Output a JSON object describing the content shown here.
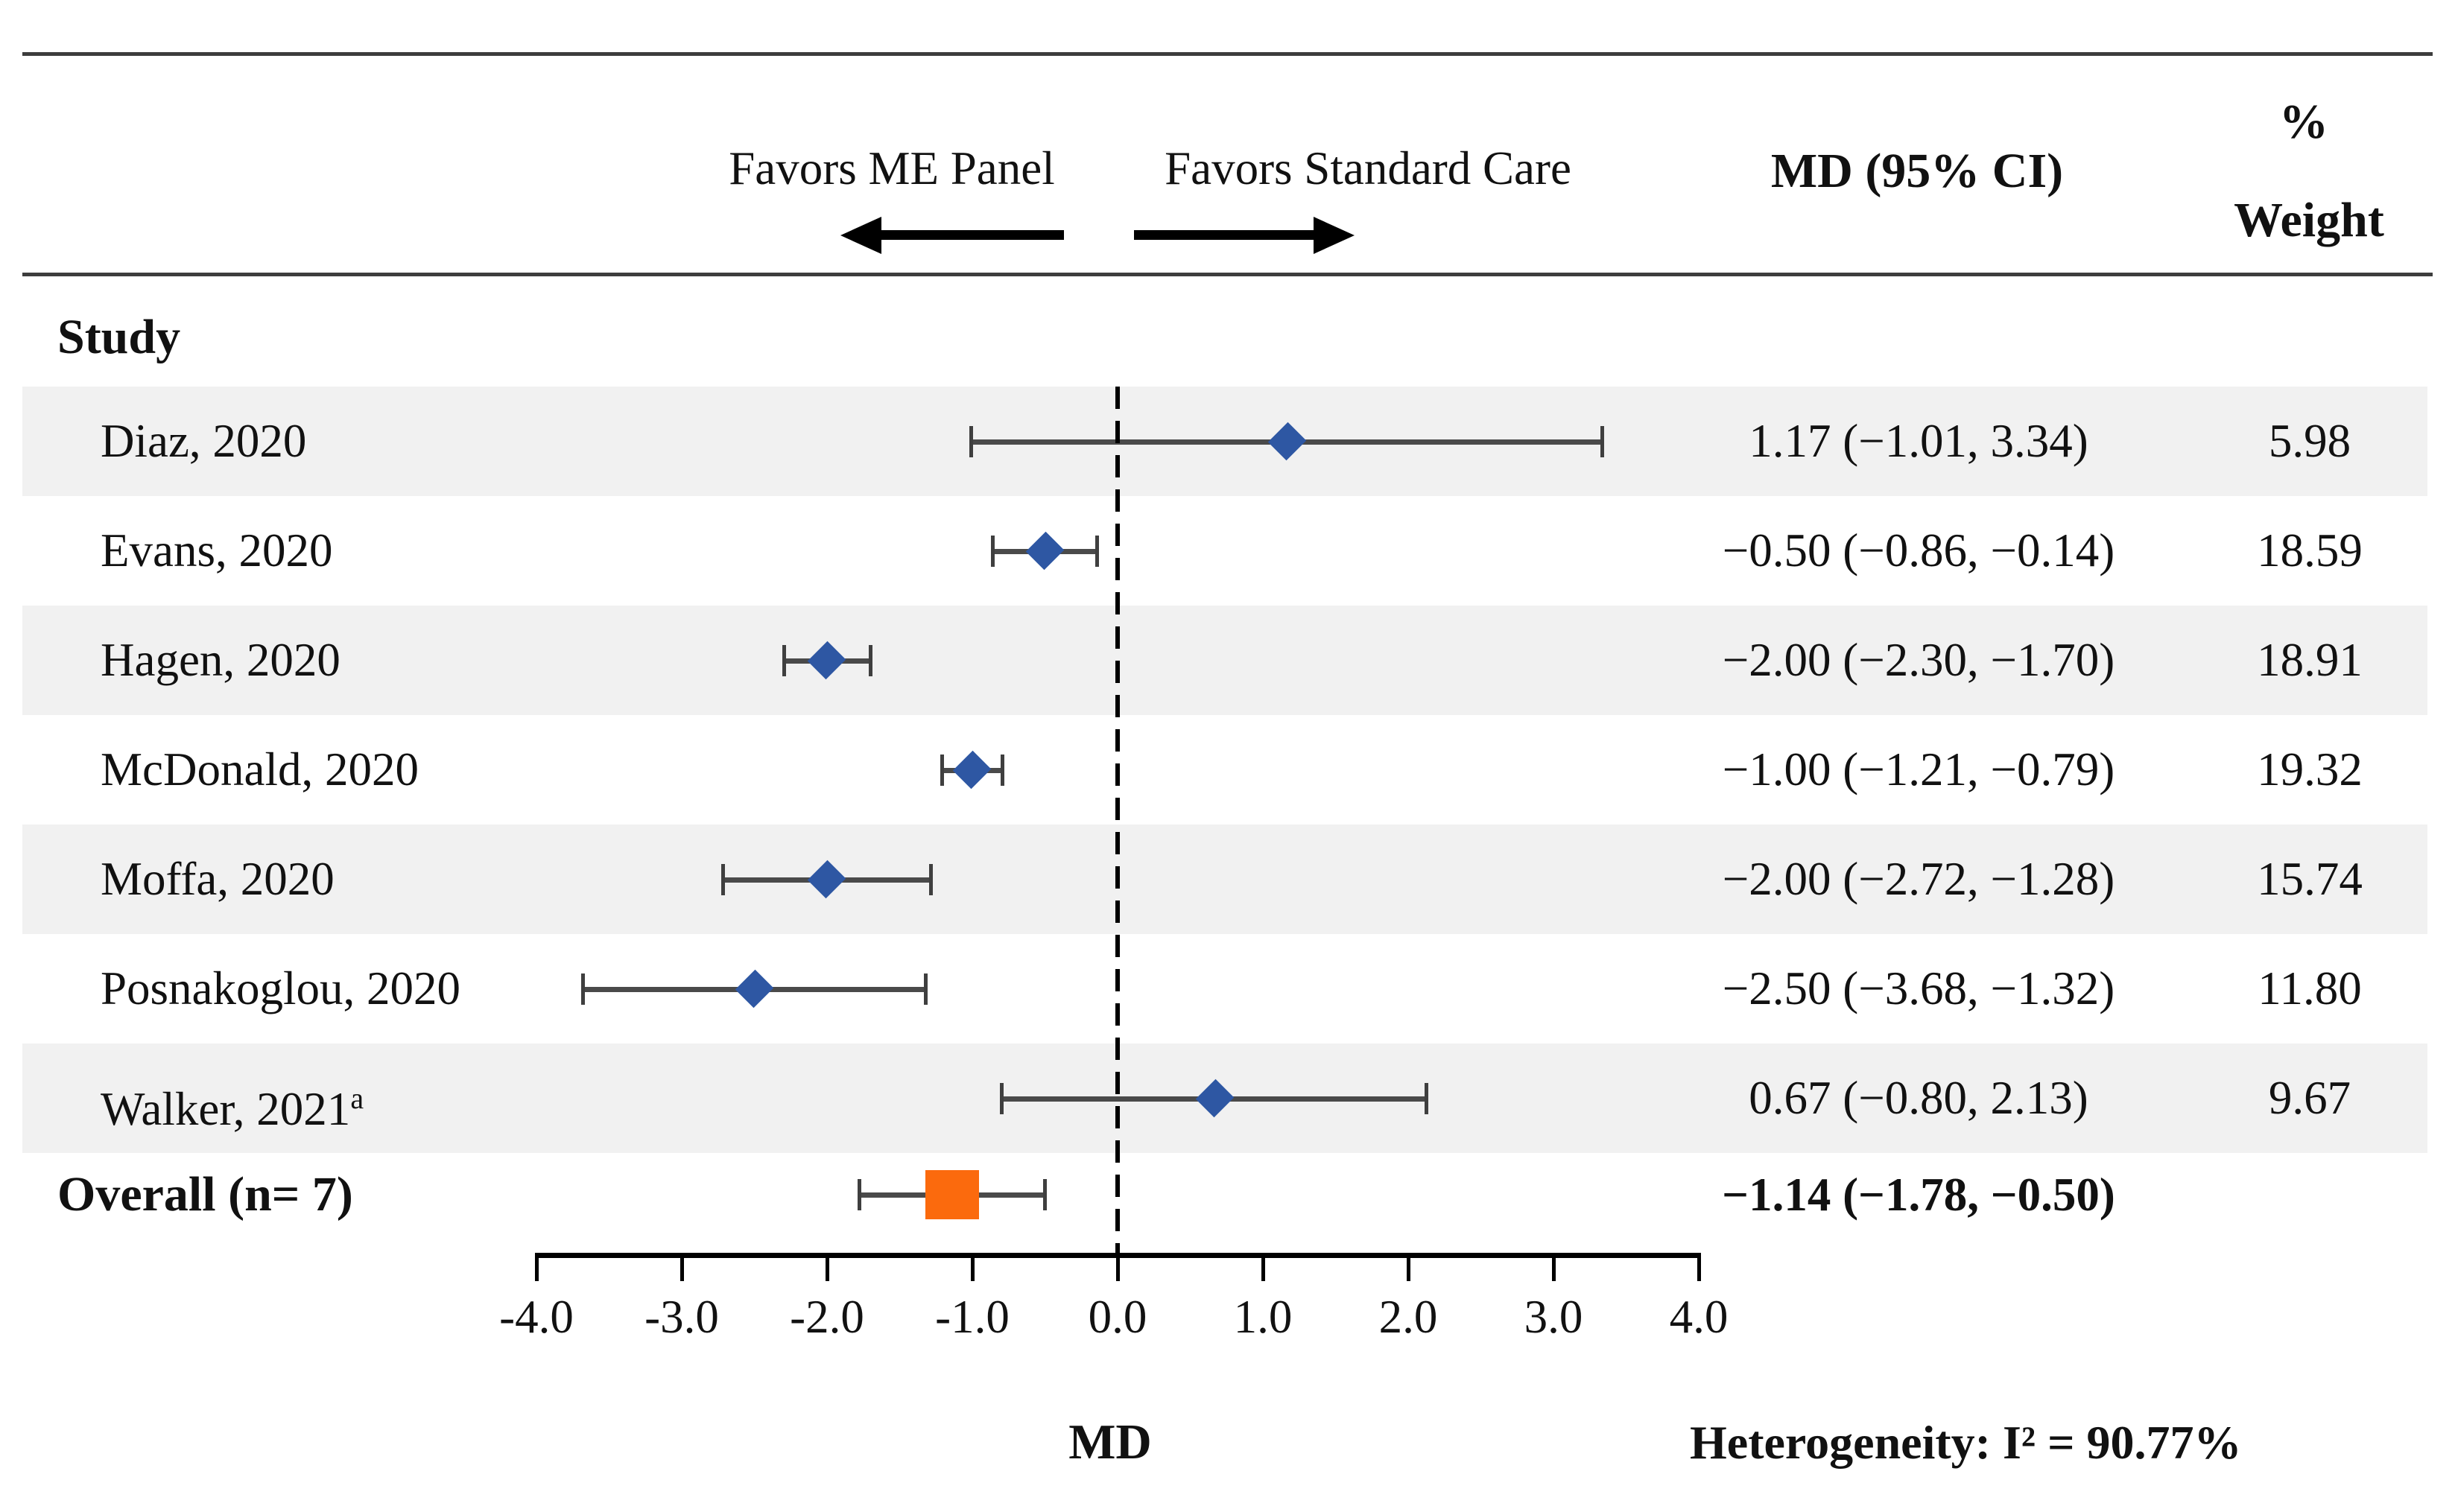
{
  "header": {
    "study_label": "Study",
    "favors_left": "Favors ME Panel",
    "favors_right": "Favors Standard Care",
    "md_ci_label": "MD (95% CI)",
    "percent_label": "%",
    "weight_label": "Weight"
  },
  "footer": {
    "xaxis_label": "MD",
    "heterogeneity": "Heterogeneity: I² = 90.77%"
  },
  "chart_data": {
    "type": "forest",
    "xlabel": "MD",
    "xlim": [
      -4.0,
      4.0
    ],
    "x_ticks": [
      {
        "value": -4.0,
        "label": "-4.0"
      },
      {
        "value": -3.0,
        "label": "-3.0"
      },
      {
        "value": -2.0,
        "label": "-2.0"
      },
      {
        "value": -1.0,
        "label": "-1.0"
      },
      {
        "value": 0.0,
        "label": "0.0"
      },
      {
        "value": 1.0,
        "label": "1.0"
      },
      {
        "value": 2.0,
        "label": "2.0"
      },
      {
        "value": 3.0,
        "label": "3.0"
      },
      {
        "value": 4.0,
        "label": "4.0"
      }
    ],
    "zero_reference": 0.0,
    "studies": [
      {
        "name": "Diaz, 2020",
        "name_sup": "",
        "md": 1.17,
        "ci_low": -1.01,
        "ci_high": 3.34,
        "md_ci_text": "1.17 (−1.01, 3.34)",
        "weight": 5.98,
        "weight_text": "5.98"
      },
      {
        "name": "Evans, 2020",
        "name_sup": "",
        "md": -0.5,
        "ci_low": -0.86,
        "ci_high": -0.14,
        "md_ci_text": "−0.50 (−0.86, −0.14)",
        "weight": 18.59,
        "weight_text": "18.59"
      },
      {
        "name": "Hagen, 2020",
        "name_sup": "",
        "md": -2.0,
        "ci_low": -2.3,
        "ci_high": -1.7,
        "md_ci_text": "−2.00 (−2.30, −1.70)",
        "weight": 18.91,
        "weight_text": "18.91"
      },
      {
        "name": "McDonald, 2020",
        "name_sup": "",
        "md": -1.0,
        "ci_low": -1.21,
        "ci_high": -0.79,
        "md_ci_text": "−1.00 (−1.21, −0.79)",
        "weight": 19.32,
        "weight_text": "19.32"
      },
      {
        "name": "Moffa, 2020",
        "name_sup": "",
        "md": -2.0,
        "ci_low": -2.72,
        "ci_high": -1.28,
        "md_ci_text": "−2.00 (−2.72, −1.28)",
        "weight": 15.74,
        "weight_text": "15.74"
      },
      {
        "name": "Posnakoglou, 2020",
        "name_sup": "",
        "md": -2.5,
        "ci_low": -3.68,
        "ci_high": -1.32,
        "md_ci_text": "−2.50 (−3.68, −1.32)",
        "weight": 11.8,
        "weight_text": "11.80"
      },
      {
        "name": "Walker, 2021",
        "name_sup": "a",
        "md": 0.67,
        "ci_low": -0.8,
        "ci_high": 2.13,
        "md_ci_text": "0.67 (−0.80, 2.13)",
        "weight": 9.67,
        "weight_text": "9.67"
      }
    ],
    "overall": {
      "name": "Overall (n= 7)",
      "md": -1.14,
      "ci_low": -1.78,
      "ci_high": -0.5,
      "md_ci_text": "−1.14 (−1.78, −0.50)"
    },
    "heterogeneity_i2_pct": 90.77,
    "colors": {
      "study_marker": "#2E57A3",
      "overall_marker": "#FB6A0D",
      "ci_bar": "#4a4a4a",
      "ci_cap": "#3f3f3f",
      "band": "#F1F1F1"
    },
    "legend_position": "none",
    "grid": false
  }
}
